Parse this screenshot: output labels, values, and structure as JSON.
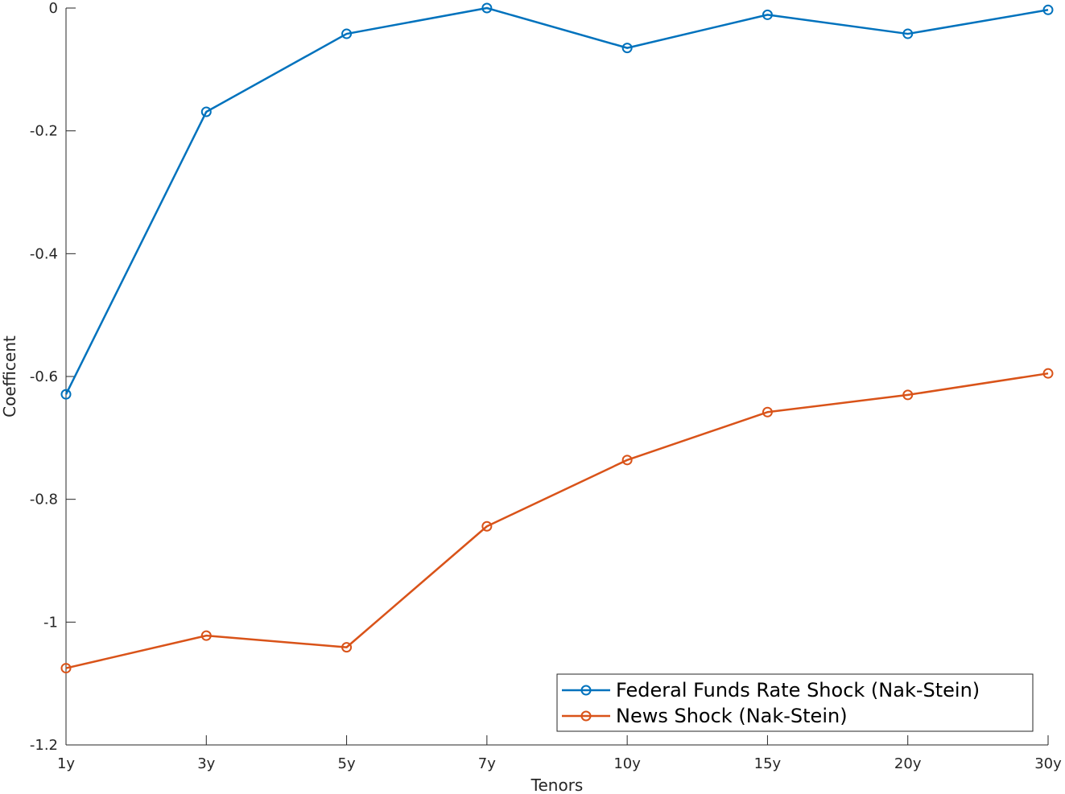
{
  "chart_data": {
    "type": "line",
    "title": "",
    "xlabel": "Tenors",
    "ylabel": "Coefficent",
    "categories": [
      "1y",
      "3y",
      "5y",
      "7y",
      "10y",
      "15y",
      "20y",
      "30y"
    ],
    "ylim": [
      -1.2,
      0
    ],
    "yticks": [
      0,
      -0.2,
      -0.4,
      -0.6,
      -0.8,
      -1,
      -1.2
    ],
    "ytick_labels": [
      "0",
      "-0.2",
      "-0.4",
      "-0.6",
      "-0.8",
      "-1",
      "-1.2"
    ],
    "grid": false,
    "legend_position": "bottom-right",
    "series": [
      {
        "name": "Federal Funds Rate Shock (Nak-Stein)",
        "color": "#0072BD",
        "marker": "circle",
        "values": [
          -0.629,
          -0.169,
          -0.042,
          0.0,
          -0.065,
          -0.011,
          -0.042,
          -0.003
        ]
      },
      {
        "name": "News Shock (Nak-Stein)",
        "color": "#D95319",
        "marker": "circle",
        "values": [
          -1.075,
          -1.022,
          -1.041,
          -0.844,
          -0.736,
          -0.658,
          -0.63,
          -0.595
        ]
      }
    ]
  }
}
